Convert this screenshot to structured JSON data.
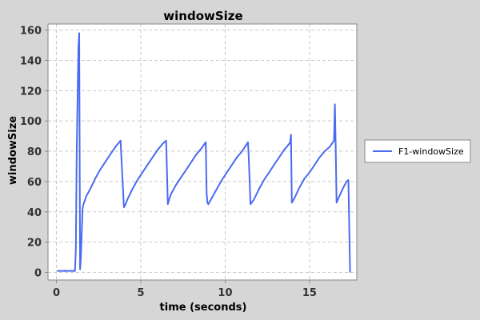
{
  "chart_data": {
    "type": "line",
    "title": "windowSize",
    "xlabel": "time (seconds)",
    "ylabel": "windowSize",
    "xlim": [
      -0.5,
      17.8
    ],
    "ylim": [
      -5,
      164
    ],
    "xticks": [
      0,
      5,
      10,
      15
    ],
    "yticks": [
      0,
      20,
      40,
      60,
      80,
      100,
      120,
      140,
      160
    ],
    "xtick_labels": [
      "0",
      "5",
      "10",
      "15"
    ],
    "ytick_labels": [
      "0",
      "20",
      "40",
      "60",
      "80",
      "100",
      "120",
      "140",
      "160"
    ],
    "grid": true,
    "legend_position": "right",
    "colors": {
      "background": "#d6d6d6",
      "plot_background": "#ffffff",
      "grid": "#c8c8c8",
      "series": "#4a6af0"
    },
    "series": [
      {
        "name": "F1-windowSize",
        "x": [
          0.1,
          0.5,
          1.0,
          1.1,
          1.15,
          1.2,
          1.3,
          1.35,
          1.4,
          1.45,
          1.55,
          1.6,
          1.7,
          1.75,
          2.0,
          2.3,
          2.6,
          2.9,
          3.2,
          3.5,
          3.8,
          4.0,
          4.05,
          4.1,
          4.2,
          4.5,
          4.8,
          5.1,
          5.4,
          5.7,
          6.0,
          6.3,
          6.5,
          6.6,
          6.65,
          6.7,
          6.8,
          7.1,
          7.4,
          7.7,
          8.0,
          8.3,
          8.6,
          8.85,
          8.9,
          8.95,
          9.0,
          9.2,
          9.5,
          9.8,
          10.1,
          10.4,
          10.7,
          11.0,
          11.3,
          11.35,
          11.4,
          11.45,
          11.5,
          11.7,
          12.0,
          12.3,
          12.6,
          12.9,
          13.2,
          13.5,
          13.8,
          13.85,
          13.9,
          13.95,
          14.1,
          14.4,
          14.7,
          15.0,
          15.3,
          15.6,
          15.9,
          16.2,
          16.45,
          16.5,
          16.55,
          16.6,
          16.75,
          17.0,
          17.2,
          17.3,
          17.4
        ],
        "y": [
          1,
          1,
          1,
          1,
          15,
          80,
          148,
          158,
          2,
          10,
          42,
          45,
          48,
          50,
          55,
          62,
          68,
          73,
          78,
          83,
          87,
          43,
          44,
          45,
          48,
          55,
          61,
          66,
          71,
          76,
          81,
          85,
          87,
          45,
          47,
          49,
          52,
          58,
          63,
          68,
          73,
          78,
          82,
          86,
          52,
          46,
          45,
          49,
          55,
          61,
          66,
          71,
          76,
          80,
          85,
          86,
          75,
          60,
          45,
          48,
          55,
          61,
          66,
          71,
          76,
          81,
          85,
          86,
          91,
          46,
          49,
          56,
          62,
          66,
          71,
          76,
          80,
          83,
          87,
          111,
          84,
          46,
          50,
          56,
          60,
          61,
          0
        ]
      }
    ]
  }
}
